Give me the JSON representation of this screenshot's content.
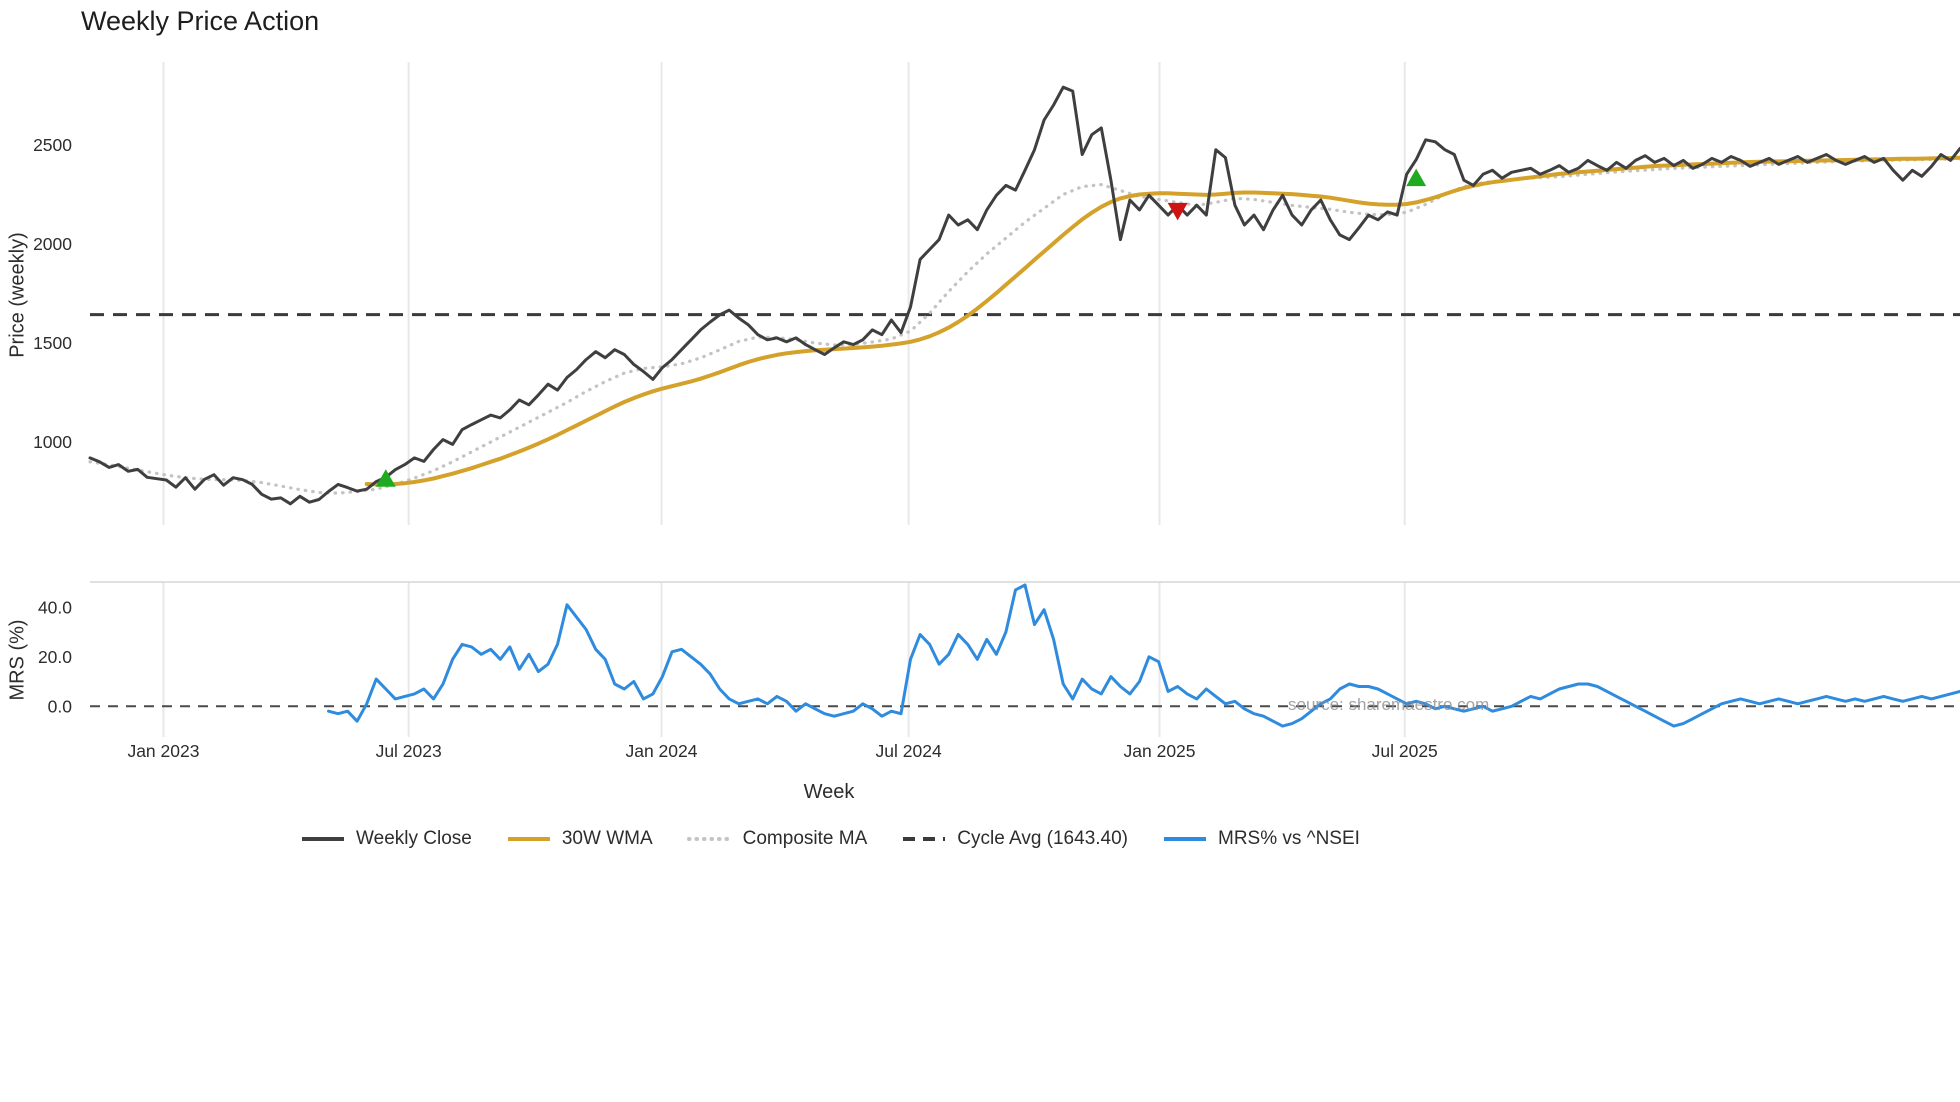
{
  "chart_data": {
    "type": "line",
    "title": "Weekly Price Action",
    "xlabel": "Week",
    "watermark": "source: sharemaestro.com",
    "x_unit": "week_index",
    "x_ticks": [
      {
        "week": 7.7,
        "label": "Jan 2023"
      },
      {
        "week": 33.4,
        "label": "Jul 2023"
      },
      {
        "week": 59.9,
        "label": "Jan 2024"
      },
      {
        "week": 85.8,
        "label": "Jul 2024"
      },
      {
        "week": 112.1,
        "label": "Jan 2025"
      },
      {
        "week": 137.8,
        "label": "Jul 2025"
      }
    ],
    "colors": {
      "grid": "#e8e8e8",
      "cycle": "#3a3a3a",
      "panel_border": "#d5d5d5",
      "zero": "#4a4a4a"
    },
    "price_panel": {
      "ylabel": "Price (weekly)",
      "yticks": [
        {
          "value": 1000,
          "label": "1000"
        },
        {
          "value": 1500,
          "label": "1500"
        },
        {
          "value": 2000,
          "label": "2000"
        },
        {
          "value": 2500,
          "label": "2500"
        }
      ],
      "ylim": [
        581,
        2919
      ],
      "cycle_avg": 1643.4,
      "series": [
        {
          "key": "composite_ma",
          "name": "Composite MA",
          "color": "#c3c3c3",
          "style": "dotted",
          "width": 3.2,
          "x0": 0,
          "dx": 2,
          "values": [
            900,
            885,
            868,
            850,
            833,
            820,
            812,
            810,
            806,
            795,
            778,
            760,
            745,
            742,
            750,
            762,
            786,
            818,
            855,
            900,
            950,
            1000,
            1050,
            1100,
            1150,
            1200,
            1255,
            1305,
            1348,
            1372,
            1380,
            1395,
            1425,
            1465,
            1508,
            1530,
            1528,
            1516,
            1500,
            1490,
            1492,
            1505,
            1520,
            1560,
            1650,
            1760,
            1860,
            1950,
            2030,
            2110,
            2180,
            2250,
            2290,
            2300,
            2270,
            2240,
            2225,
            2210,
            2195,
            2210,
            2230,
            2225,
            2210,
            2195,
            2185,
            2175,
            2160,
            2150,
            2148,
            2160,
            2200,
            2250,
            2290,
            2310,
            2320,
            2330,
            2335,
            2340,
            2348,
            2356,
            2364,
            2370,
            2376,
            2382,
            2386,
            2390,
            2394,
            2398,
            2402,
            2406,
            2410,
            2414,
            2418,
            2420,
            2422,
            2424,
            2426,
            2428,
            2430
          ]
        },
        {
          "key": "wma30",
          "name": "30W WMA",
          "color": "#d4a12a",
          "style": "solid",
          "width": 4,
          "x0": 29,
          "dx": 1,
          "values": [
            788,
            786,
            786,
            788,
            792,
            798,
            806,
            816,
            828,
            840,
            854,
            868,
            884,
            900,
            916,
            934,
            952,
            972,
            992,
            1014,
            1036,
            1060,
            1084,
            1108,
            1132,
            1156,
            1180,
            1202,
            1222,
            1240,
            1256,
            1270,
            1282,
            1294,
            1306,
            1320,
            1336,
            1352,
            1370,
            1388,
            1404,
            1418,
            1430,
            1440,
            1448,
            1454,
            1459,
            1463,
            1466,
            1469,
            1472,
            1475,
            1478,
            1482,
            1486,
            1492,
            1498,
            1506,
            1518,
            1534,
            1554,
            1578,
            1606,
            1638,
            1674,
            1712,
            1752,
            1794,
            1836,
            1878,
            1920,
            1962,
            2004,
            2046,
            2086,
            2124,
            2158,
            2188,
            2212,
            2230,
            2242,
            2250,
            2254,
            2256,
            2256,
            2254,
            2252,
            2250,
            2248,
            2250,
            2254,
            2258,
            2260,
            2260,
            2258,
            2256,
            2254,
            2252,
            2248,
            2244,
            2240,
            2234,
            2226,
            2218,
            2210,
            2204,
            2200,
            2198,
            2198,
            2202,
            2210,
            2222,
            2236,
            2252,
            2268,
            2282,
            2294,
            2304,
            2312,
            2318,
            2324,
            2330,
            2336,
            2342,
            2348,
            2354,
            2358,
            2362,
            2366,
            2370,
            2374,
            2378,
            2382,
            2386,
            2390,
            2394,
            2396,
            2398,
            2400,
            2402,
            2404,
            2406,
            2408,
            2410,
            2412,
            2414,
            2415,
            2416,
            2417,
            2418,
            2419,
            2420,
            2421,
            2422,
            2423,
            2424,
            2425,
            2426,
            2427,
            2428,
            2429,
            2430,
            2430,
            2431,
            2432,
            2433,
            2434,
            2435
          ]
        },
        {
          "key": "weekly_close",
          "name": "Weekly Close",
          "color": "#3f3f3f",
          "style": "solid",
          "width": 3,
          "x0": 0,
          "dx": 1,
          "values": [
            920,
            900,
            872,
            886,
            852,
            862,
            822,
            815,
            808,
            772,
            820,
            762,
            812,
            835,
            782,
            820,
            810,
            786,
            736,
            712,
            718,
            688,
            726,
            696,
            710,
            750,
            786,
            770,
            752,
            762,
            800,
            822,
            860,
            886,
            920,
            902,
            962,
            1012,
            988,
            1062,
            1088,
            1112,
            1136,
            1122,
            1162,
            1212,
            1188,
            1238,
            1292,
            1262,
            1326,
            1366,
            1416,
            1456,
            1426,
            1466,
            1442,
            1392,
            1356,
            1316,
            1376,
            1416,
            1466,
            1516,
            1566,
            1606,
            1642,
            1666,
            1626,
            1592,
            1542,
            1516,
            1526,
            1506,
            1526,
            1492,
            1466,
            1442,
            1476,
            1506,
            1492,
            1516,
            1566,
            1542,
            1616,
            1552,
            1682,
            1922,
            1972,
            2022,
            2146,
            2096,
            2122,
            2072,
            2172,
            2246,
            2296,
            2272,
            2372,
            2476,
            2626,
            2702,
            2792,
            2772,
            2452,
            2552,
            2586,
            2322,
            2022,
            2222,
            2172,
            2246,
            2196,
            2146,
            2196,
            2146,
            2196,
            2146,
            2476,
            2436,
            2196,
            2096,
            2146,
            2072,
            2172,
            2246,
            2146,
            2096,
            2172,
            2222,
            2122,
            2046,
            2022,
            2082,
            2146,
            2122,
            2162,
            2146,
            2352,
            2426,
            2526,
            2516,
            2476,
            2452,
            2322,
            2296,
            2352,
            2372,
            2332,
            2362,
            2372,
            2382,
            2352,
            2372,
            2396,
            2362,
            2382,
            2422,
            2396,
            2372,
            2412,
            2382,
            2422,
            2446,
            2412,
            2432,
            2396,
            2422,
            2382,
            2402,
            2432,
            2412,
            2442,
            2422,
            2392,
            2412,
            2432,
            2402,
            2422,
            2442,
            2412,
            2432,
            2452,
            2422,
            2402,
            2422,
            2442,
            2412,
            2432,
            2372,
            2322,
            2372,
            2342,
            2392,
            2452,
            2422,
            2482
          ]
        }
      ],
      "markers": [
        {
          "type": "buy",
          "shape": "triangle-up",
          "color": "#1faa1f",
          "week": 31,
          "price": 812
        },
        {
          "type": "sell",
          "shape": "triangle-down",
          "color": "#cf1312",
          "week": 114,
          "price": 2170
        },
        {
          "type": "buy",
          "shape": "triangle-up",
          "color": "#1faa1f",
          "week": 139,
          "price": 2330
        }
      ]
    },
    "mrs_panel": {
      "ylabel": "MRS (%)",
      "yticks": [
        {
          "value": 0,
          "label": "0.0"
        },
        {
          "value": 20,
          "label": "20.0"
        },
        {
          "value": 40,
          "label": "40.0"
        }
      ],
      "ylim": [
        -12.4,
        50.2
      ],
      "zero_line": 0,
      "series": [
        {
          "key": "mrs",
          "name": "MRS% vs ^NSEI",
          "color": "#2e8bde",
          "style": "solid",
          "width": 3,
          "x0": 25,
          "dx": 1,
          "values": [
            -2,
            -3,
            -2,
            -6,
            1,
            11,
            7,
            3,
            4,
            5,
            7,
            3,
            9,
            19,
            25,
            24,
            21,
            23,
            19,
            24,
            15,
            21,
            14,
            17,
            25,
            41,
            36,
            31,
            23,
            19,
            9,
            7,
            10,
            3,
            5,
            12,
            22,
            23,
            20,
            17,
            13,
            7,
            3,
            1,
            2,
            3,
            1,
            4,
            2,
            -2,
            1,
            -1,
            -3,
            -4,
            -3,
            -2,
            1,
            -1,
            -4,
            -2,
            -3,
            19,
            29,
            25,
            17,
            21,
            29,
            25,
            19,
            27,
            21,
            30,
            47,
            49,
            33,
            39,
            27,
            9,
            3,
            11,
            7,
            5,
            12,
            8,
            5,
            10,
            20,
            18,
            6,
            8,
            5,
            3,
            7,
            4,
            1,
            2,
            -1,
            -3,
            -4,
            -6,
            -8,
            -7,
            -5,
            -2,
            1,
            3,
            7,
            9,
            8,
            8,
            7,
            5,
            3,
            1,
            2,
            1,
            -1,
            0,
            -1,
            -2,
            -1,
            0,
            -2,
            -1,
            0,
            2,
            4,
            3,
            5,
            7,
            8,
            9,
            9,
            8,
            6,
            4,
            2,
            0,
            -2,
            -4,
            -6,
            -8,
            -7,
            -5,
            -3,
            -1,
            1,
            2,
            3,
            2,
            1,
            2,
            3,
            2,
            1,
            2,
            3,
            4,
            3,
            2,
            3,
            2,
            3,
            4,
            3,
            2,
            3,
            4,
            3,
            4,
            5,
            6
          ]
        }
      ]
    },
    "legend": [
      {
        "label": "Weekly Close",
        "color": "#3f3f3f",
        "style": "solid"
      },
      {
        "label": "30W WMA",
        "color": "#d4a12a",
        "style": "solid"
      },
      {
        "label": "Composite MA",
        "color": "#c3c3c3",
        "style": "dotted"
      },
      {
        "label": "Cycle Avg (1643.40)",
        "color": "#3a3a3a",
        "style": "dashed"
      },
      {
        "label": "MRS% vs ^NSEI",
        "color": "#2e8bde",
        "style": "solid"
      }
    ]
  }
}
